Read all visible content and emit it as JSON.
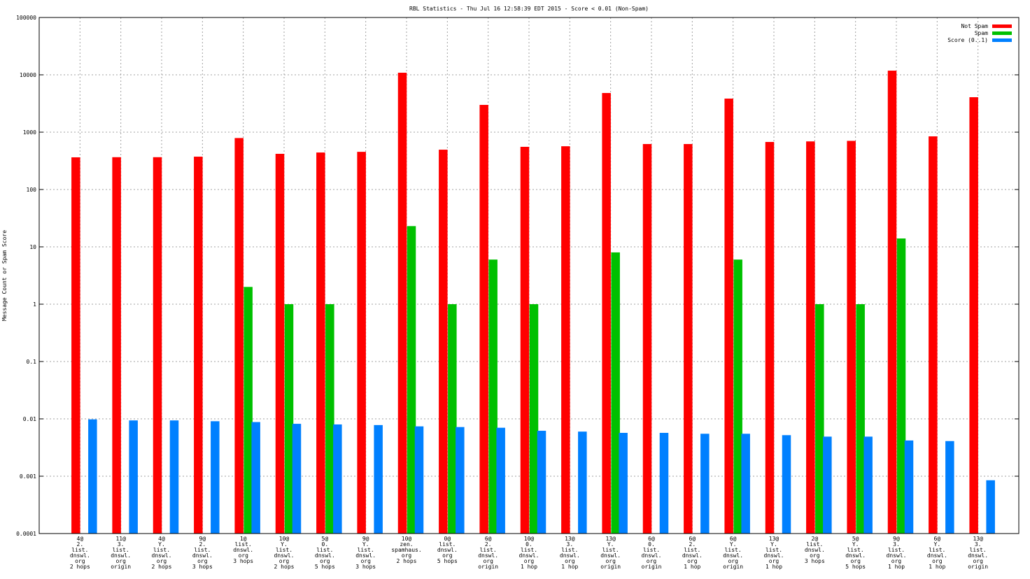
{
  "chart_data": {
    "type": "bar",
    "title": "RBL Statistics - Thu Jul 16 12:58:39 EDT 2015 - Score < 0.01 (Non-Spam)",
    "xlabel": "",
    "ylabel": "Message Count or Spam Score",
    "yscale": "log",
    "ylim": [
      0.0001,
      100000
    ],
    "yticks": [
      "0.0001",
      "0.001",
      "0.01",
      "0.1",
      "1",
      "10",
      "100",
      "1000",
      "10000",
      "100000"
    ],
    "grid": true,
    "legend_position": "top-right",
    "categories": [
      [
        "4@",
        "2.",
        "list.",
        "dnswl.",
        "org",
        "2 hops"
      ],
      [
        "11@",
        "3.",
        "list.",
        "dnswl.",
        "org",
        "origin"
      ],
      [
        "4@",
        "Y.",
        "list.",
        "dnswl.",
        "org",
        "2 hops"
      ],
      [
        "9@",
        "2.",
        "list.",
        "dnswl.",
        "org",
        "3 hops"
      ],
      [
        "1@",
        "list.",
        "dnswl.",
        "org",
        "3 hops"
      ],
      [
        "10@",
        "Y.",
        "list.",
        "dnswl.",
        "org",
        "2 hops"
      ],
      [
        "5@",
        "0.",
        "list.",
        "dnswl.",
        "org",
        "5 hops"
      ],
      [
        "9@",
        "Y.",
        "list.",
        "dnswl.",
        "org",
        "3 hops"
      ],
      [
        "10@",
        "zen.",
        "spamhaus.",
        "org",
        "2 hops"
      ],
      [
        "0@",
        "list.",
        "dnswl.",
        "org",
        "5 hops"
      ],
      [
        "6@",
        "2.",
        "list.",
        "dnswl.",
        "org",
        "origin"
      ],
      [
        "10@",
        "0.",
        "list.",
        "dnswl.",
        "org",
        "1 hop"
      ],
      [
        "13@",
        "3.",
        "list.",
        "dnswl.",
        "org",
        "1 hop"
      ],
      [
        "13@",
        "Y.",
        "list.",
        "dnswl.",
        "org",
        "origin"
      ],
      [
        "6@",
        "0.",
        "list.",
        "dnswl.",
        "org",
        "origin"
      ],
      [
        "6@",
        "2.",
        "list.",
        "dnswl.",
        "org",
        "1 hop"
      ],
      [
        "6@",
        "Y.",
        "list.",
        "dnswl.",
        "org",
        "origin"
      ],
      [
        "13@",
        "Y.",
        "list.",
        "dnswl.",
        "org",
        "1 hop"
      ],
      [
        "2@",
        "list.",
        "dnswl.",
        "org",
        "3 hops"
      ],
      [
        "5@",
        "Y.",
        "list.",
        "dnswl.",
        "org",
        "5 hops"
      ],
      [
        "9@",
        "3.",
        "list.",
        "dnswl.",
        "org",
        "1 hop"
      ],
      [
        "6@",
        "Y.",
        "list.",
        "dnswl.",
        "org",
        "1 hop"
      ],
      [
        "13@",
        "3.",
        "list.",
        "dnswl.",
        "org",
        "origin"
      ]
    ],
    "series": [
      {
        "name": "Not Spam",
        "color": "#ff0000",
        "values": [
          364,
          366,
          366,
          374,
          790,
          419,
          442,
          454,
          10880,
          495,
          2990,
          555,
          568,
          4820,
          621,
          621,
          3850,
          675,
          690,
          705,
          11830,
          845,
          4070
        ]
      },
      {
        "name": "Spam",
        "color": "#00c000",
        "values": [
          0,
          0,
          0,
          0,
          2,
          1,
          1,
          0,
          23,
          1,
          6,
          1,
          0,
          8,
          0,
          0,
          6,
          0,
          1,
          1,
          14,
          0,
          0
        ]
      },
      {
        "name": "Score (0..1)",
        "color": "#0080ff",
        "values": [
          0.0098,
          0.0094,
          0.0094,
          0.0091,
          0.0088,
          0.0082,
          0.008,
          0.0078,
          0.0074,
          0.0072,
          0.007,
          0.0062,
          0.006,
          0.0057,
          0.0057,
          0.0055,
          0.0055,
          0.0052,
          0.0049,
          0.0049,
          0.0042,
          0.0041,
          0.00085
        ]
      }
    ]
  }
}
